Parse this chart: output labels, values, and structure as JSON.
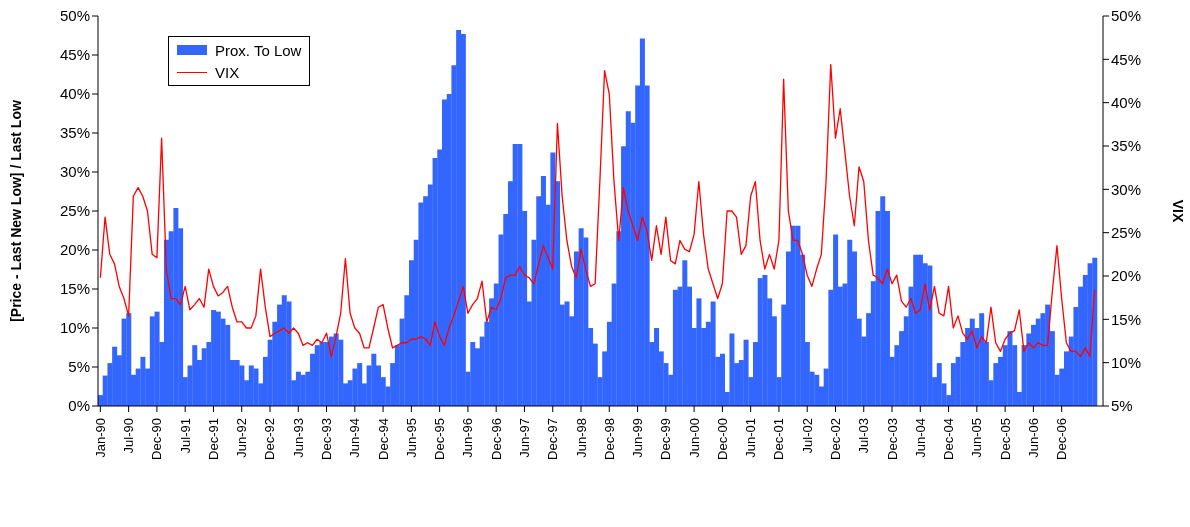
{
  "chart_data": {
    "type": "bar",
    "ylabel": "[Price - Last New Low] / Last Low",
    "y2label": "VIX",
    "categories": [
      "Jan-90",
      null,
      null,
      null,
      null,
      null,
      "Jul-90",
      null,
      null,
      null,
      null,
      null,
      "Dec-90",
      null,
      null,
      null,
      null,
      null,
      "Jul-91",
      null,
      null,
      null,
      null,
      null,
      "Dec-91",
      null,
      null,
      null,
      null,
      null,
      "Jun-92",
      null,
      null,
      null,
      null,
      null,
      "Dec-92",
      null,
      null,
      null,
      null,
      null,
      "Jun-93",
      null,
      null,
      null,
      null,
      null,
      "Dec-93",
      null,
      null,
      null,
      null,
      null,
      "Jun-94",
      null,
      null,
      null,
      null,
      null,
      "Dec-94",
      null,
      null,
      null,
      null,
      null,
      "Jun-95",
      null,
      null,
      null,
      null,
      null,
      "Dec-95",
      null,
      null,
      null,
      null,
      null,
      "Jun-96",
      null,
      null,
      null,
      null,
      null,
      "Dec-96",
      null,
      null,
      null,
      null,
      null,
      "Jun-97",
      null,
      null,
      null,
      null,
      null,
      "Dec-97",
      null,
      null,
      null,
      null,
      null,
      "Jun-98",
      null,
      null,
      null,
      null,
      null,
      "Dec-98",
      null,
      null,
      null,
      null,
      null,
      "Jun-99",
      null,
      null,
      null,
      null,
      null,
      "Dec-99",
      null,
      null,
      null,
      null,
      null,
      "Jun-00",
      null,
      null,
      null,
      null,
      null,
      "Dec-00",
      null,
      null,
      null,
      null,
      null,
      "Jun-01",
      null,
      null,
      null,
      null,
      null,
      "Dec-01",
      null,
      null,
      null,
      null,
      null,
      "Jul-02",
      null,
      null,
      null,
      null,
      null,
      "Dec-02",
      null,
      null,
      null,
      null,
      null,
      "Jul-03",
      null,
      null,
      null,
      null,
      null,
      "Dec-03",
      null,
      null,
      null,
      null,
      null,
      "Jun-04",
      null,
      null,
      null,
      null,
      null,
      "Dec-04",
      null,
      null,
      null,
      null,
      null,
      "Jun-05",
      null,
      null,
      null,
      null,
      null,
      "Dec-05",
      null,
      null,
      null,
      null,
      null,
      "Jun-06",
      null,
      null,
      null,
      null,
      null,
      "Dec-06",
      null,
      null,
      null,
      null,
      null,
      null,
      null
    ],
    "series": [
      {
        "name": "Prox. To Low",
        "color": "#3366ff",
        "values": [
          1.4,
          3.9,
          5.5,
          7.6,
          6.5,
          11.2,
          11.9,
          4,
          4.8,
          6.3,
          4.8,
          11.5,
          12.1,
          8.2,
          21.3,
          22.4,
          25.4,
          22.8,
          3.7,
          5.2,
          7.8,
          5.9,
          7.4,
          8.2,
          12.3,
          12.1,
          11.2,
          10.4,
          5.9,
          5.9,
          5.2,
          3.3,
          5.2,
          4.8,
          2.9,
          6.3,
          8.5,
          10.8,
          13,
          14.2,
          13.4,
          3.3,
          4.4,
          4,
          4.4,
          6.7,
          7.8,
          8.2,
          8.2,
          8.9,
          9.3,
          8.5,
          2.9,
          3.3,
          4.8,
          5.5,
          2.9,
          5.2,
          6.7,
          5.2,
          3.7,
          2.5,
          5.5,
          7.8,
          11.2,
          14.2,
          18.7,
          21.3,
          26.1,
          26.9,
          28.4,
          31.8,
          32.9,
          39.3,
          40,
          43.7,
          48.2,
          47.7,
          4.4,
          8.2,
          7.4,
          8.9,
          10.8,
          13.8,
          15.7,
          22,
          24.6,
          28.8,
          33.6,
          33.6,
          25,
          13.4,
          21.3,
          26.9,
          29.5,
          25.8,
          32.5,
          28.8,
          13,
          13.4,
          11.5,
          19.8,
          22.8,
          21.6,
          10,
          8,
          3.7,
          7,
          10.8,
          15.7,
          22.4,
          33.3,
          37.8,
          36.3,
          41.1,
          47.1,
          41.1,
          8.2,
          10,
          7,
          5.5,
          4,
          14.9,
          15.3,
          18.7,
          15.3,
          10,
          13.8,
          10,
          10.8,
          13.4,
          6.3,
          6.7,
          1.8,
          9.3,
          5.5,
          5.9,
          8.5,
          3.7,
          8.2,
          16.4,
          16.8,
          13.8,
          11.5,
          3.7,
          13,
          19.8,
          23.1,
          23.1,
          19.4,
          8.2,
          4.4,
          4,
          2.5,
          4.8,
          14.9,
          22,
          15.3,
          15.7,
          21.3,
          19.8,
          11.2,
          8.9,
          11.9,
          16,
          25,
          26.9,
          25,
          6.3,
          7.8,
          9.6,
          11.5,
          15.3,
          19.4,
          19.4,
          18.3,
          18,
          3.7,
          5.5,
          2.9,
          1.4,
          5.5,
          6.3,
          8.2,
          10,
          11.2,
          10,
          11.9,
          8.2,
          3.3,
          5.5,
          6.3,
          7.8,
          9.6,
          7.8,
          1.8,
          7.8,
          9.3,
          10.4,
          11.2,
          11.9,
          13,
          9.6,
          4,
          4.8,
          7,
          8.9,
          12.7,
          15.3,
          16.8,
          18.3,
          19
        ]
      },
      {
        "name": "VIX",
        "type": "line",
        "axis": "y2",
        "color": "#ff0000",
        "values": [
          19.8,
          26.8,
          22.5,
          21.4,
          18.8,
          17.4,
          15.4,
          29.2,
          30.2,
          29.2,
          27.5,
          22.5,
          22.1,
          35.9,
          20.8,
          17.4,
          17.4,
          16.7,
          18.8,
          16.1,
          16.7,
          17.4,
          16.4,
          20.8,
          18.8,
          17.7,
          18.1,
          18.8,
          16.4,
          14.7,
          14.7,
          14,
          14,
          15.4,
          20.8,
          16.4,
          13,
          13.4,
          13.7,
          14,
          13.4,
          14,
          13.4,
          12,
          12.3,
          12,
          12.7,
          12.3,
          13.4,
          10.7,
          13,
          15.7,
          22,
          15.7,
          14,
          13.4,
          11.7,
          11.7,
          14,
          16.4,
          16.7,
          14,
          11.7,
          12,
          12.3,
          12.3,
          12.7,
          12.7,
          13,
          12.7,
          12,
          14.7,
          13,
          12,
          14,
          15.4,
          17.1,
          18.8,
          15.7,
          16.7,
          17.4,
          19.4,
          14.7,
          16.4,
          16.1,
          17.4,
          19.8,
          20.1,
          20.1,
          21.1,
          20.1,
          19.8,
          19.1,
          21.4,
          23.5,
          22.1,
          20.8,
          37.6,
          29.2,
          24.1,
          21.1,
          19.8,
          23.1,
          20.8,
          18.8,
          19.1,
          30.9,
          43.7,
          41,
          30.9,
          24.1,
          30.2,
          27.5,
          25.8,
          24.1,
          26.8,
          25.2,
          21.8,
          25.8,
          22.5,
          26.8,
          21.8,
          21.4,
          24.1,
          23.1,
          22.8,
          24.8,
          30.9,
          24.8,
          20.8,
          19.1,
          17.4,
          19.1,
          27.5,
          27.5,
          26.8,
          22.5,
          23.5,
          29.2,
          30.9,
          24.1,
          20.8,
          22.5,
          20.8,
          24.1,
          42.7,
          27.5,
          24.1,
          24.1,
          22.5,
          20.1,
          18.8,
          20.8,
          22.5,
          30.9,
          44.4,
          35.9,
          39.3,
          34.3,
          29.2,
          25.8,
          32.6,
          30.9,
          24.1,
          20.1,
          19.8,
          19.1,
          20.8,
          19.1,
          20.1,
          17.1,
          16.4,
          17.4,
          15.7,
          16.1,
          19.1,
          16.1,
          18.8,
          15.7,
          15.4,
          18.8,
          14,
          15.4,
          13.4,
          12.7,
          13.7,
          11.7,
          13,
          12.3,
          16.4,
          12.3,
          11.3,
          12.7,
          13.4,
          13.7,
          16.1,
          11.3,
          12.3,
          11.7,
          12.3,
          12,
          12,
          18.1,
          23.5,
          17.4,
          12.3,
          11.3,
          11.3,
          10.7,
          11.7,
          10.7,
          18.4
        ]
      }
    ],
    "ylim": [
      0,
      50
    ],
    "yticks": [
      {
        "value": 0,
        "label": "0%"
      },
      {
        "value": 5,
        "label": "5%"
      },
      {
        "value": 10,
        "label": "10%"
      },
      {
        "value": 15,
        "label": "15%"
      },
      {
        "value": 20,
        "label": "20%"
      },
      {
        "value": 25,
        "label": "25%"
      },
      {
        "value": 30,
        "label": "30%"
      },
      {
        "value": 35,
        "label": "35%"
      },
      {
        "value": 40,
        "label": "40%"
      },
      {
        "value": 45,
        "label": "45%"
      },
      {
        "value": 50,
        "label": "50%"
      }
    ],
    "y2lim": [
      5,
      50
    ],
    "y2ticks": [
      {
        "value": 5,
        "label": "5%"
      },
      {
        "value": 10,
        "label": "10%"
      },
      {
        "value": 15,
        "label": "15%"
      },
      {
        "value": 20,
        "label": "20%"
      },
      {
        "value": 25,
        "label": "25%"
      },
      {
        "value": 30,
        "label": "30%"
      },
      {
        "value": 35,
        "label": "35%"
      },
      {
        "value": 40,
        "label": "40%"
      },
      {
        "value": 45,
        "label": "45%"
      },
      {
        "value": 50,
        "label": "50%"
      }
    ],
    "legend": "top left",
    "grid": false
  }
}
